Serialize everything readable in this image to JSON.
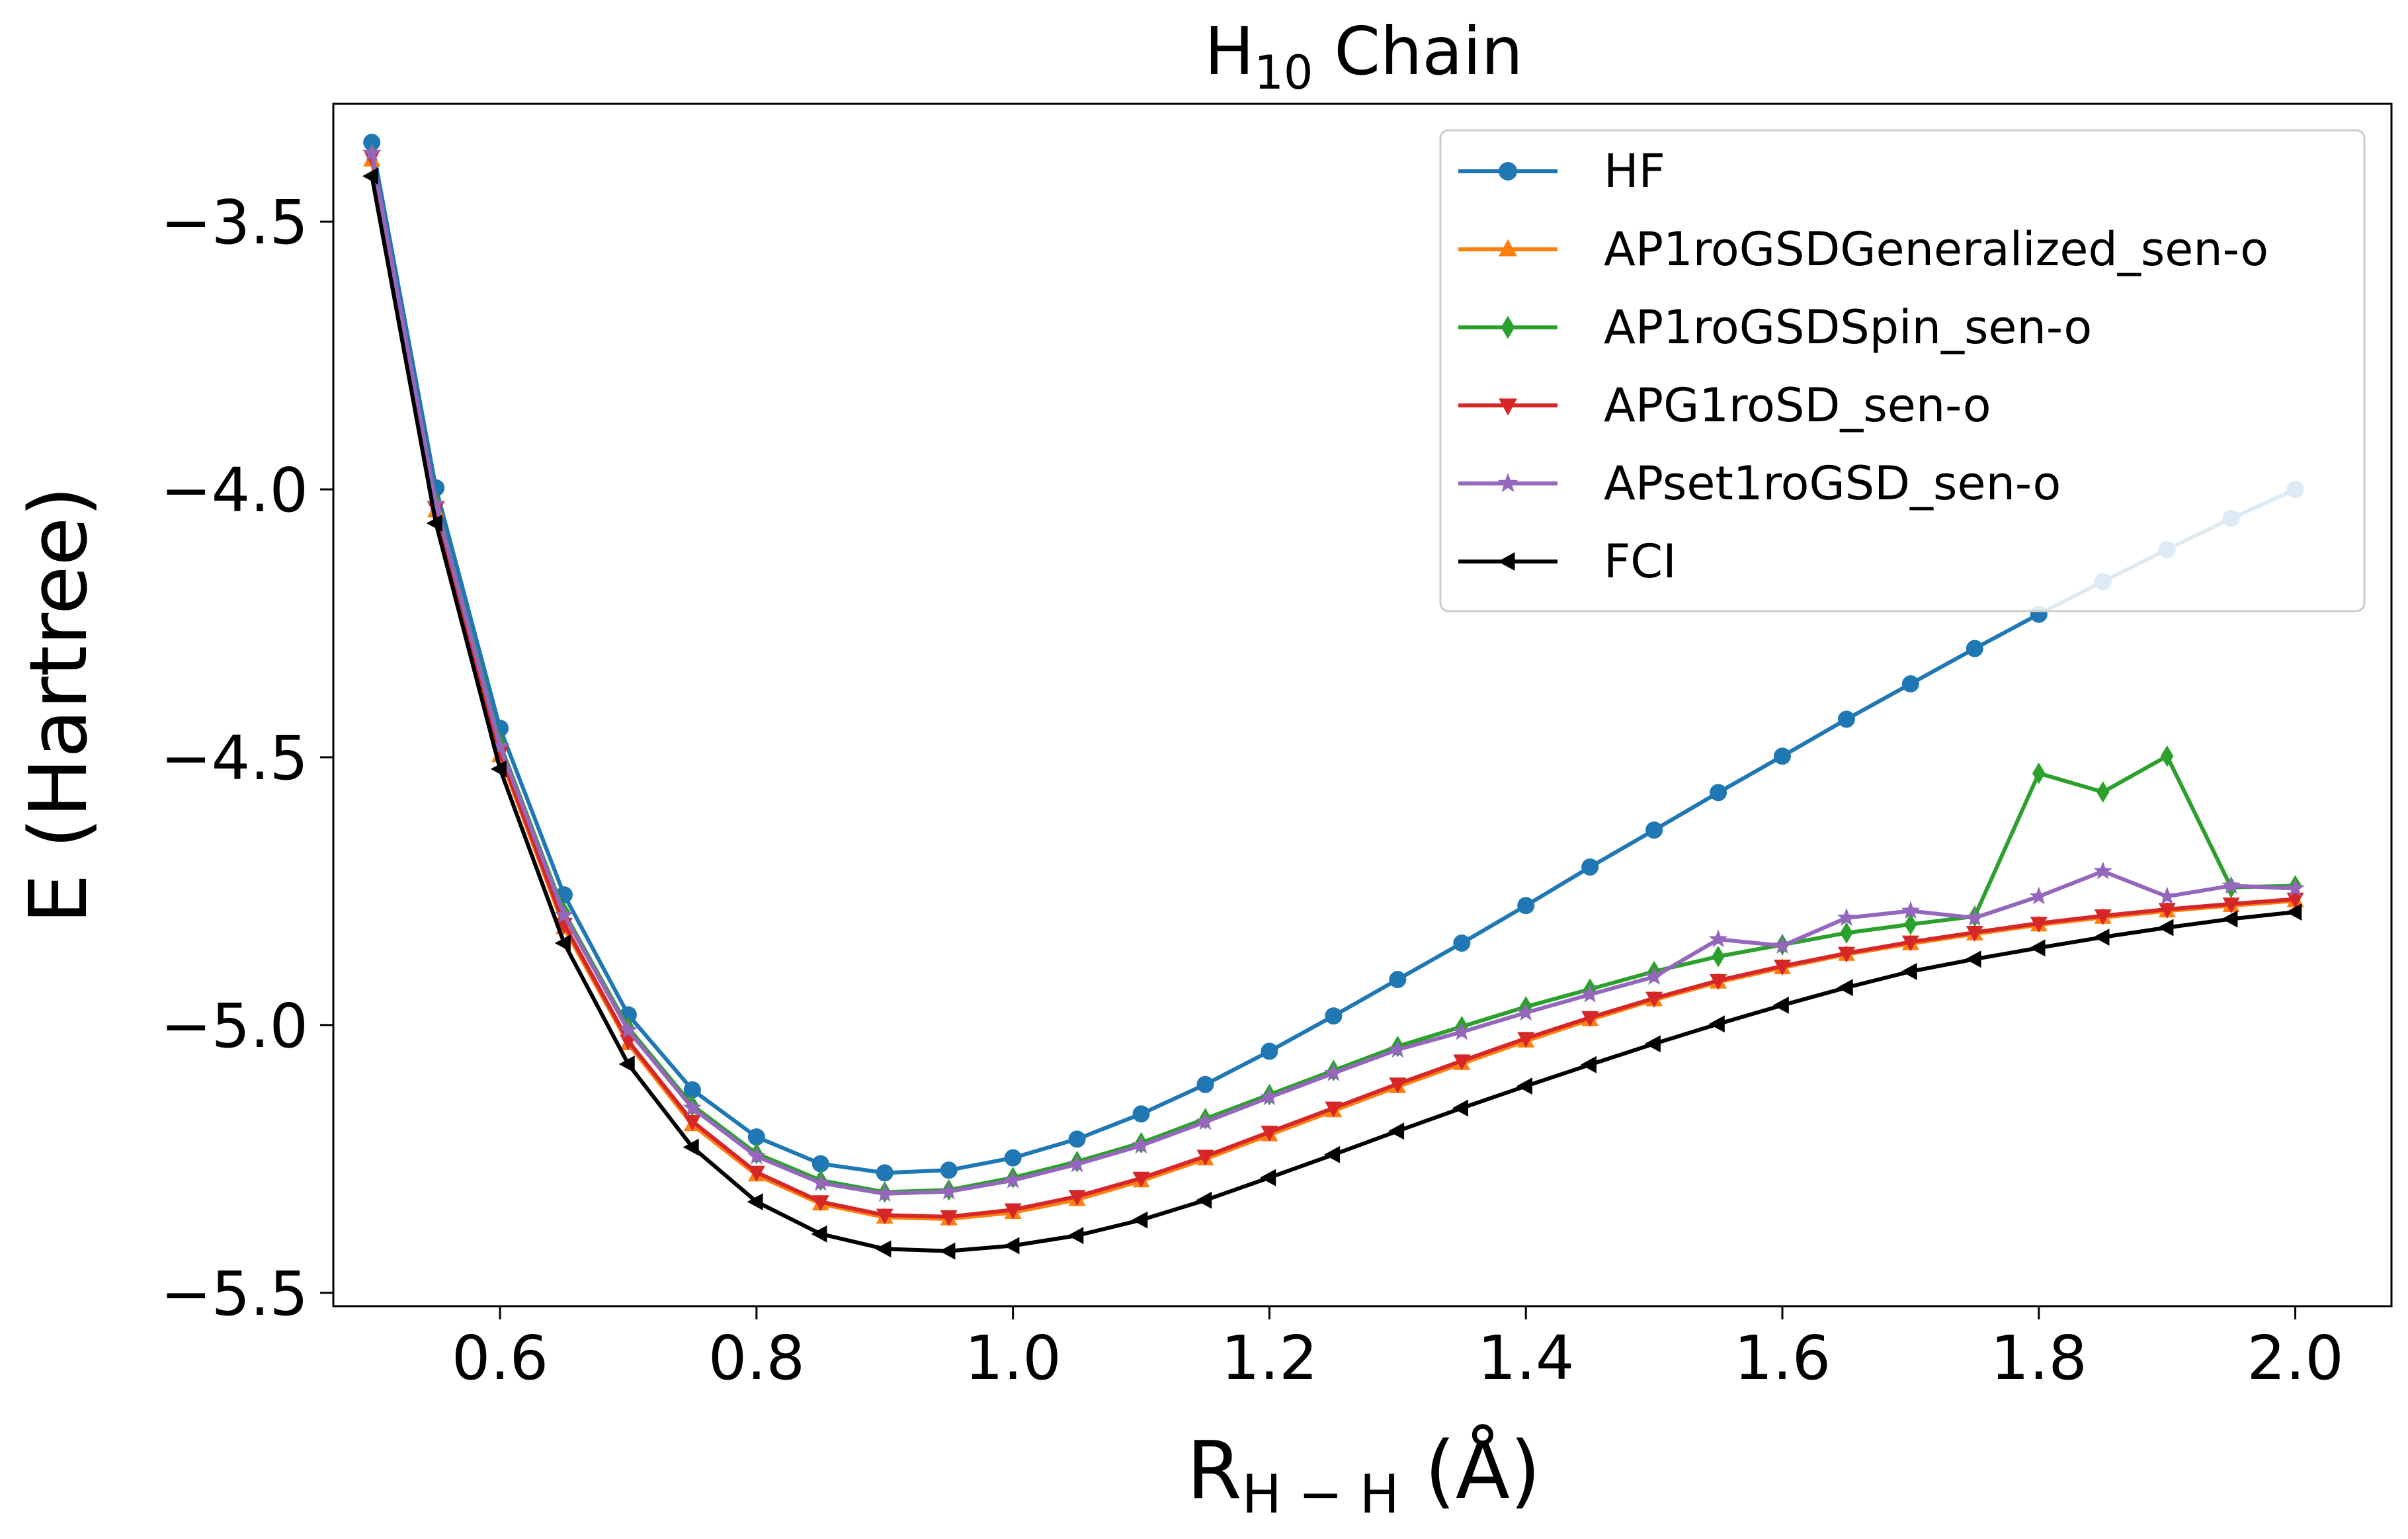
{
  "chart_data": {
    "type": "line",
    "title_main": "H",
    "title_sub": "10",
    "title_rest": " Chain",
    "xlabel_main": "R",
    "xlabel_sub": "H − H",
    "xlabel_rest": " (Å)",
    "ylabel": "E (Hartree)",
    "xlim": [
      0.47,
      2.075
    ],
    "ylim": [
      -5.525,
      -3.28
    ],
    "xticks": [
      0.6,
      0.8,
      1.0,
      1.2,
      1.4,
      1.6,
      1.8,
      2.0
    ],
    "xtick_labels": [
      "0.6",
      "0.8",
      "1.0",
      "1.2",
      "1.4",
      "1.6",
      "1.8",
      "2.0"
    ],
    "yticks": [
      -3.5,
      -4.0,
      -4.5,
      -5.0,
      -5.5
    ],
    "ytick_labels": [
      "−3.5",
      "−4.0",
      "−4.5",
      "−5.0",
      "−5.5"
    ],
    "legend_position": "top-right",
    "x": [
      0.5,
      0.55,
      0.6,
      0.65,
      0.7,
      0.75,
      0.8,
      0.85,
      0.9,
      0.95,
      1.0,
      1.05,
      1.1,
      1.15,
      1.2,
      1.25,
      1.3,
      1.35,
      1.4,
      1.45,
      1.5,
      1.55,
      1.6,
      1.65,
      1.7,
      1.75,
      1.8,
      1.85,
      1.9,
      1.95,
      2.0
    ],
    "series": [
      {
        "name": "HF",
        "color": "#1f77b4",
        "marker": "circle",
        "values": [
          -3.352,
          -3.997,
          -4.446,
          -4.757,
          -4.981,
          -5.121,
          -5.209,
          -5.259,
          -5.276,
          -5.271,
          -5.248,
          -5.213,
          -5.166,
          -5.111,
          -5.049,
          -4.983,
          -4.915,
          -4.847,
          -4.777,
          -4.705,
          -4.636,
          -4.566,
          -4.498,
          -4.429,
          -4.363,
          -4.297,
          -4.233,
          -4.172,
          -4.112,
          -4.054,
          -4.0
        ]
      },
      {
        "name": "AP1roGSDGeneralized_sen-o",
        "color": "#ff7f0e",
        "marker": "triangle-up",
        "values": [
          -3.385,
          -4.04,
          -4.497,
          -4.818,
          -5.035,
          -5.186,
          -5.28,
          -5.334,
          -5.359,
          -5.362,
          -5.35,
          -5.326,
          -5.291,
          -5.25,
          -5.205,
          -5.16,
          -5.115,
          -5.072,
          -5.03,
          -4.99,
          -4.953,
          -4.92,
          -4.893,
          -4.868,
          -4.848,
          -4.83,
          -4.813,
          -4.799,
          -4.787,
          -4.777,
          -4.768
        ]
      },
      {
        "name": "AP1roGSDSpin_sen-o",
        "color": "#2ca02c",
        "marker": "diamond",
        "values": [
          -3.375,
          -4.025,
          -4.475,
          -4.79,
          -5.005,
          -5.15,
          -5.24,
          -5.29,
          -5.312,
          -5.308,
          -5.285,
          -5.255,
          -5.22,
          -5.175,
          -5.13,
          -5.085,
          -5.04,
          -5.003,
          -4.966,
          -4.933,
          -4.9,
          -4.872,
          -4.85,
          -4.828,
          -4.812,
          -4.797,
          -4.53,
          -4.565,
          -4.498,
          -4.743,
          -4.74
        ]
      },
      {
        "name": "APG1roSD_sen-o",
        "color": "#d62728",
        "marker": "triangle-down",
        "values": [
          -3.378,
          -4.035,
          -4.492,
          -4.812,
          -5.03,
          -5.18,
          -5.275,
          -5.33,
          -5.355,
          -5.358,
          -5.345,
          -5.32,
          -5.286,
          -5.245,
          -5.2,
          -5.155,
          -5.11,
          -5.067,
          -5.025,
          -4.986,
          -4.95,
          -4.917,
          -4.89,
          -4.866,
          -4.845,
          -4.827,
          -4.81,
          -4.796,
          -4.784,
          -4.774,
          -4.765
        ]
      },
      {
        "name": "APset1roGSD_sen-o",
        "color": "#9467bd",
        "marker": "star",
        "values": [
          -3.372,
          -4.027,
          -4.48,
          -4.795,
          -5.01,
          -5.155,
          -5.245,
          -5.295,
          -5.315,
          -5.311,
          -5.29,
          -5.26,
          -5.225,
          -5.181,
          -5.135,
          -5.09,
          -5.046,
          -5.013,
          -4.977,
          -4.943,
          -4.91,
          -4.84,
          -4.852,
          -4.8,
          -4.787,
          -4.8,
          -4.76,
          -4.713,
          -4.76,
          -4.74,
          -4.745
        ]
      },
      {
        "name": "FCI",
        "color": "#000000",
        "marker": "triangle-left",
        "values": [
          -3.415,
          -4.063,
          -4.522,
          -4.847,
          -5.073,
          -5.228,
          -5.33,
          -5.39,
          -5.418,
          -5.422,
          -5.412,
          -5.393,
          -5.364,
          -5.327,
          -5.285,
          -5.242,
          -5.198,
          -5.155,
          -5.114,
          -5.074,
          -5.035,
          -4.998,
          -4.963,
          -4.93,
          -4.9,
          -4.877,
          -4.856,
          -4.836,
          -4.818,
          -4.802,
          -4.789
        ]
      }
    ]
  }
}
